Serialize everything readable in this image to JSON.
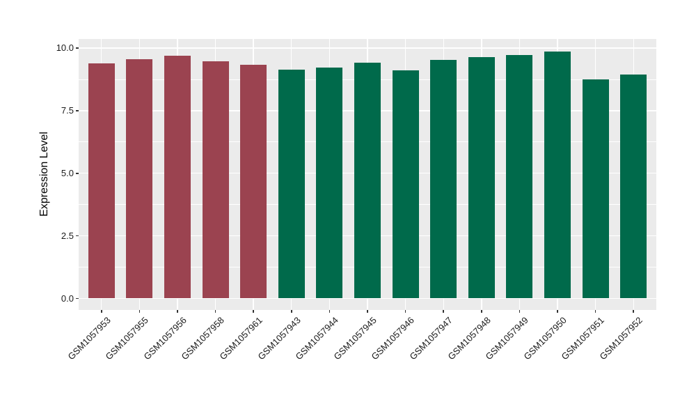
{
  "figure": {
    "background": "#FFFFFF",
    "panel_background": "#EBEBEB",
    "gridline_color": "#FFFFFF",
    "tick_mark_color": "#333333",
    "label_color": "#1A1A1A"
  },
  "chart_data": {
    "type": "bar",
    "title": "",
    "xlabel": "",
    "ylabel": "Expression Level",
    "categories": [
      "GSM1057953",
      "GSM1057955",
      "GSM1057956",
      "GSM1057958",
      "GSM1057961",
      "GSM1057943",
      "GSM1057944",
      "GSM1057945",
      "GSM1057946",
      "GSM1057947",
      "GSM1057948",
      "GSM1057949",
      "GSM1057950",
      "GSM1057951",
      "GSM1057952"
    ],
    "values": [
      9.38,
      9.56,
      9.69,
      9.48,
      9.32,
      9.14,
      9.21,
      9.41,
      9.11,
      9.54,
      9.63,
      9.72,
      9.87,
      8.76,
      8.94
    ],
    "bar_colors": [
      "#9B4350",
      "#9B4350",
      "#9B4350",
      "#9B4350",
      "#9B4350",
      "#006A4B",
      "#006A4B",
      "#006A4B",
      "#006A4B",
      "#006A4B",
      "#006A4B",
      "#006A4B",
      "#006A4B",
      "#006A4B",
      "#006A4B"
    ],
    "group_colors": {
      "maroon": "#9B4350",
      "green": "#006A4B"
    },
    "ylim": [
      0,
      10
    ],
    "yticks": [
      0.0,
      2.5,
      5.0,
      7.5,
      10.0
    ],
    "ytick_labels": [
      "0.0",
      "2.5",
      "5.0",
      "7.5",
      "10.0"
    ],
    "yminor": [
      1.25,
      3.75,
      6.25,
      8.75
    ],
    "x_label_angle_deg": 45,
    "grid": true,
    "legend_position": "none"
  }
}
